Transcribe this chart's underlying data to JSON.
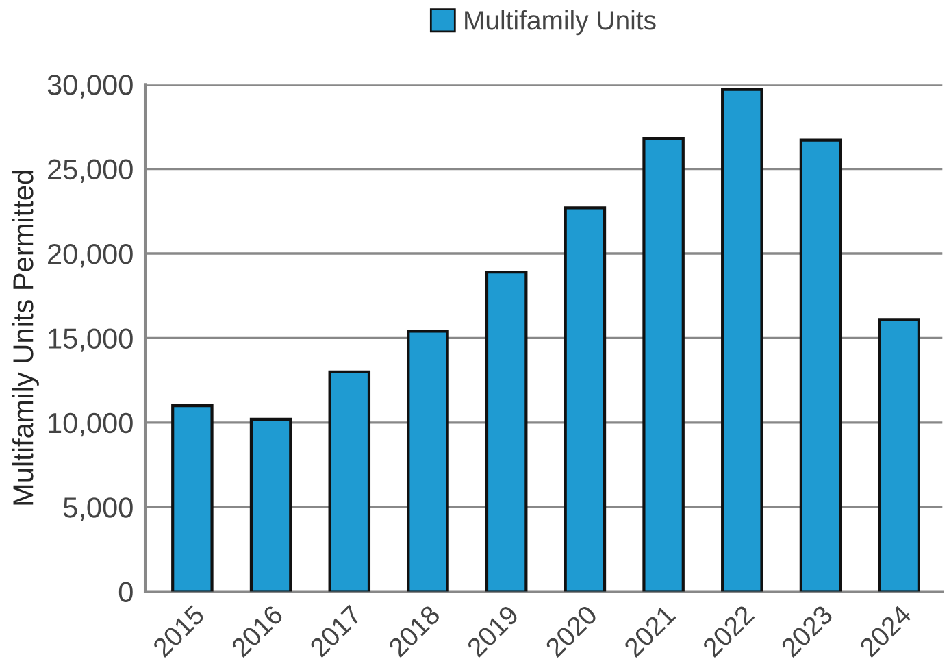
{
  "chart_data": {
    "type": "bar",
    "ylabel": "Multifamily Units Permitted",
    "categories": [
      "2015",
      "2016",
      "2017",
      "2018",
      "2019",
      "2020",
      "2021",
      "2022",
      "2023",
      "2024"
    ],
    "series": [
      {
        "name": "Multifamily Units",
        "color": "#1f9bd2",
        "values": [
          11000,
          10200,
          13000,
          15400,
          18900,
          22700,
          26800,
          29700,
          26700,
          16100
        ]
      }
    ],
    "ylim": [
      0,
      30000
    ],
    "yticks": [
      {
        "value": 0,
        "label": "0"
      },
      {
        "value": 5000,
        "label": "5,000"
      },
      {
        "value": 10000,
        "label": "10,000"
      },
      {
        "value": 15000,
        "label": "15,000"
      },
      {
        "value": 20000,
        "label": "20,000"
      },
      {
        "value": 25000,
        "label": "25,000"
      },
      {
        "value": 30000,
        "label": "30,000"
      }
    ],
    "grid": "y",
    "legend": "top"
  }
}
